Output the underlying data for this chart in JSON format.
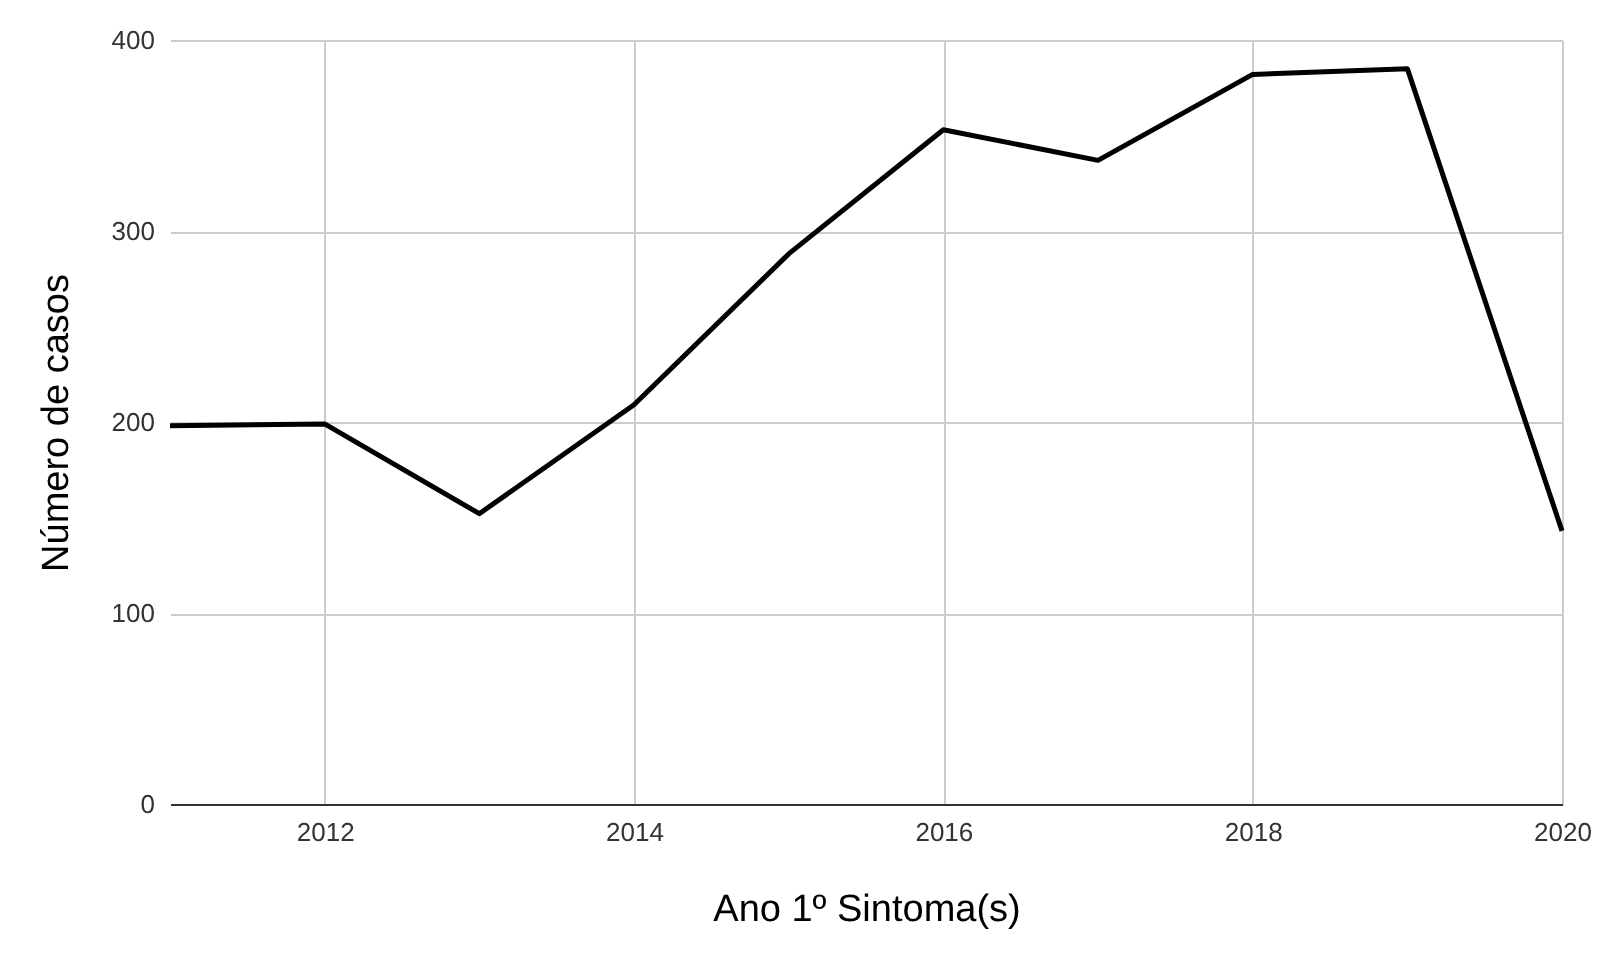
{
  "chart_data": {
    "type": "line",
    "xlabel": "Ano 1º Sintoma(s)",
    "ylabel": "Número de casos",
    "x": [
      2011,
      2012,
      2013,
      2014,
      2015,
      2016,
      2017,
      2018,
      2019,
      2020
    ],
    "series": [
      {
        "color": "#000000",
        "values": [
          198,
          199,
          152,
          209,
          288,
          353,
          337,
          382,
          385,
          143
        ]
      }
    ],
    "xlim": [
      2011,
      2020
    ],
    "xticks": [
      2012,
      2014,
      2016,
      2018,
      2020
    ],
    "ylim": [
      0,
      400
    ],
    "yticks": [
      0,
      100,
      200,
      300,
      400
    ],
    "grid": true,
    "marker": "none",
    "line_style": "solid"
  }
}
